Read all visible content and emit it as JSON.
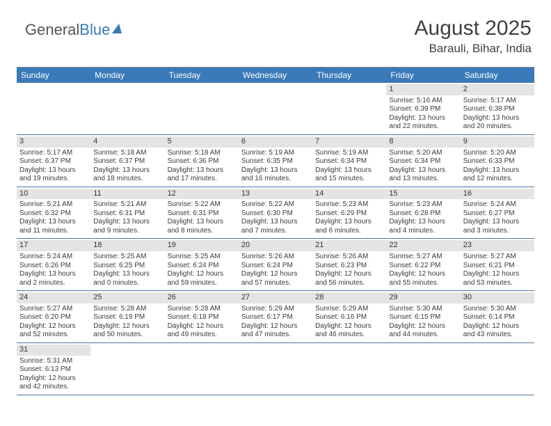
{
  "brand": {
    "part1": "General",
    "part2": "Blue"
  },
  "title": "August 2025",
  "location": "Barauli, Bihar, India",
  "colors": {
    "header_bg": "#3a7ab8",
    "daynum_bg": "#e4e4e4",
    "rule": "#4a74a0",
    "text": "#3a3a3a"
  },
  "dow": [
    "Sunday",
    "Monday",
    "Tuesday",
    "Wednesday",
    "Thursday",
    "Friday",
    "Saturday"
  ],
  "weeks": [
    [
      null,
      null,
      null,
      null,
      null,
      {
        "n": "1",
        "sr": "Sunrise: 5:16 AM",
        "ss": "Sunset: 6:39 PM",
        "dl": "Daylight: 13 hours and 22 minutes."
      },
      {
        "n": "2",
        "sr": "Sunrise: 5:17 AM",
        "ss": "Sunset: 6:38 PM",
        "dl": "Daylight: 13 hours and 20 minutes."
      }
    ],
    [
      {
        "n": "3",
        "sr": "Sunrise: 5:17 AM",
        "ss": "Sunset: 6:37 PM",
        "dl": "Daylight: 13 hours and 19 minutes."
      },
      {
        "n": "4",
        "sr": "Sunrise: 5:18 AM",
        "ss": "Sunset: 6:37 PM",
        "dl": "Daylight: 13 hours and 18 minutes."
      },
      {
        "n": "5",
        "sr": "Sunrise: 5:18 AM",
        "ss": "Sunset: 6:36 PM",
        "dl": "Daylight: 13 hours and 17 minutes."
      },
      {
        "n": "6",
        "sr": "Sunrise: 5:19 AM",
        "ss": "Sunset: 6:35 PM",
        "dl": "Daylight: 13 hours and 16 minutes."
      },
      {
        "n": "7",
        "sr": "Sunrise: 5:19 AM",
        "ss": "Sunset: 6:34 PM",
        "dl": "Daylight: 13 hours and 15 minutes."
      },
      {
        "n": "8",
        "sr": "Sunrise: 5:20 AM",
        "ss": "Sunset: 6:34 PM",
        "dl": "Daylight: 13 hours and 13 minutes."
      },
      {
        "n": "9",
        "sr": "Sunrise: 5:20 AM",
        "ss": "Sunset: 6:33 PM",
        "dl": "Daylight: 13 hours and 12 minutes."
      }
    ],
    [
      {
        "n": "10",
        "sr": "Sunrise: 5:21 AM",
        "ss": "Sunset: 6:32 PM",
        "dl": "Daylight: 13 hours and 11 minutes."
      },
      {
        "n": "11",
        "sr": "Sunrise: 5:21 AM",
        "ss": "Sunset: 6:31 PM",
        "dl": "Daylight: 13 hours and 9 minutes."
      },
      {
        "n": "12",
        "sr": "Sunrise: 5:22 AM",
        "ss": "Sunset: 6:31 PM",
        "dl": "Daylight: 13 hours and 8 minutes."
      },
      {
        "n": "13",
        "sr": "Sunrise: 5:22 AM",
        "ss": "Sunset: 6:30 PM",
        "dl": "Daylight: 13 hours and 7 minutes."
      },
      {
        "n": "14",
        "sr": "Sunrise: 5:23 AM",
        "ss": "Sunset: 6:29 PM",
        "dl": "Daylight: 13 hours and 6 minutes."
      },
      {
        "n": "15",
        "sr": "Sunrise: 5:23 AM",
        "ss": "Sunset: 6:28 PM",
        "dl": "Daylight: 13 hours and 4 minutes."
      },
      {
        "n": "16",
        "sr": "Sunrise: 5:24 AM",
        "ss": "Sunset: 6:27 PM",
        "dl": "Daylight: 13 hours and 3 minutes."
      }
    ],
    [
      {
        "n": "17",
        "sr": "Sunrise: 5:24 AM",
        "ss": "Sunset: 6:26 PM",
        "dl": "Daylight: 13 hours and 2 minutes."
      },
      {
        "n": "18",
        "sr": "Sunrise: 5:25 AM",
        "ss": "Sunset: 6:25 PM",
        "dl": "Daylight: 13 hours and 0 minutes."
      },
      {
        "n": "19",
        "sr": "Sunrise: 5:25 AM",
        "ss": "Sunset: 6:24 PM",
        "dl": "Daylight: 12 hours and 59 minutes."
      },
      {
        "n": "20",
        "sr": "Sunrise: 5:26 AM",
        "ss": "Sunset: 6:24 PM",
        "dl": "Daylight: 12 hours and 57 minutes."
      },
      {
        "n": "21",
        "sr": "Sunrise: 5:26 AM",
        "ss": "Sunset: 6:23 PM",
        "dl": "Daylight: 12 hours and 56 minutes."
      },
      {
        "n": "22",
        "sr": "Sunrise: 5:27 AM",
        "ss": "Sunset: 6:22 PM",
        "dl": "Daylight: 12 hours and 55 minutes."
      },
      {
        "n": "23",
        "sr": "Sunrise: 5:27 AM",
        "ss": "Sunset: 6:21 PM",
        "dl": "Daylight: 12 hours and 53 minutes."
      }
    ],
    [
      {
        "n": "24",
        "sr": "Sunrise: 5:27 AM",
        "ss": "Sunset: 6:20 PM",
        "dl": "Daylight: 12 hours and 52 minutes."
      },
      {
        "n": "25",
        "sr": "Sunrise: 5:28 AM",
        "ss": "Sunset: 6:19 PM",
        "dl": "Daylight: 12 hours and 50 minutes."
      },
      {
        "n": "26",
        "sr": "Sunrise: 5:28 AM",
        "ss": "Sunset: 6:18 PM",
        "dl": "Daylight: 12 hours and 49 minutes."
      },
      {
        "n": "27",
        "sr": "Sunrise: 5:29 AM",
        "ss": "Sunset: 6:17 PM",
        "dl": "Daylight: 12 hours and 47 minutes."
      },
      {
        "n": "28",
        "sr": "Sunrise: 5:29 AM",
        "ss": "Sunset: 6:16 PM",
        "dl": "Daylight: 12 hours and 46 minutes."
      },
      {
        "n": "29",
        "sr": "Sunrise: 5:30 AM",
        "ss": "Sunset: 6:15 PM",
        "dl": "Daylight: 12 hours and 44 minutes."
      },
      {
        "n": "30",
        "sr": "Sunrise: 5:30 AM",
        "ss": "Sunset: 6:14 PM",
        "dl": "Daylight: 12 hours and 43 minutes."
      }
    ],
    [
      {
        "n": "31",
        "sr": "Sunrise: 5:31 AM",
        "ss": "Sunset: 6:13 PM",
        "dl": "Daylight: 12 hours and 42 minutes."
      },
      null,
      null,
      null,
      null,
      null,
      null
    ]
  ]
}
